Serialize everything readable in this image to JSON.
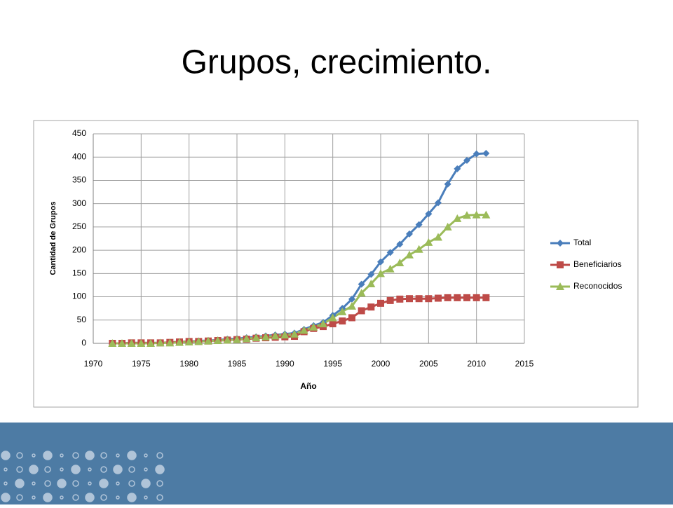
{
  "chart_data": {
    "type": "line",
    "title": "Grupos, crecimiento.",
    "x_label": "Año",
    "y_label": "Cantidad de Grupos",
    "x": [
      1972,
      1973,
      1974,
      1975,
      1976,
      1977,
      1978,
      1979,
      1980,
      1981,
      1982,
      1983,
      1984,
      1985,
      1986,
      1987,
      1988,
      1989,
      1990,
      1991,
      1992,
      1993,
      1994,
      1995,
      1996,
      1997,
      1998,
      1999,
      2000,
      2001,
      2002,
      2003,
      2004,
      2005,
      2006,
      2007,
      2008,
      2009,
      2010,
      2011
    ],
    "series": [
      {
        "name": "Total",
        "color": "#4a7ebb",
        "marker": "diamond",
        "values": [
          0,
          0,
          1,
          1,
          1,
          1,
          2,
          3,
          4,
          5,
          6,
          7,
          9,
          10,
          12,
          14,
          16,
          18,
          20,
          22,
          30,
          38,
          45,
          60,
          75,
          95,
          127,
          148,
          175,
          195,
          213,
          235,
          255,
          278,
          302,
          342,
          375,
          393,
          407,
          408
        ]
      },
      {
        "name": "Beneficiarios",
        "color": "#be4b48",
        "marker": "square",
        "values": [
          0,
          0,
          1,
          1,
          1,
          1,
          2,
          3,
          4,
          4,
          5,
          6,
          7,
          8,
          9,
          11,
          12,
          13,
          14,
          15,
          25,
          32,
          36,
          42,
          48,
          55,
          70,
          78,
          86,
          92,
          95,
          96,
          96,
          96,
          97,
          98,
          98,
          98,
          98,
          98
        ]
      },
      {
        "name": "Reconocidos",
        "color": "#9bbb59",
        "marker": "triangle",
        "values": [
          0,
          0,
          0,
          0,
          0,
          1,
          1,
          2,
          3,
          4,
          5,
          6,
          7,
          8,
          10,
          12,
          14,
          16,
          18,
          20,
          28,
          35,
          42,
          55,
          68,
          80,
          108,
          128,
          150,
          160,
          173,
          190,
          202,
          217,
          228,
          250,
          268,
          275,
          276,
          276
        ]
      }
    ],
    "xlim": [
      1970,
      2015
    ],
    "xticks": [
      1970,
      1975,
      1980,
      1985,
      1990,
      1995,
      2000,
      2005,
      2010,
      2015
    ],
    "ylim": [
      0,
      450
    ],
    "yticks": [
      0,
      50,
      100,
      150,
      200,
      250,
      300,
      350,
      400,
      450
    ],
    "grid": true,
    "legend": "right"
  }
}
